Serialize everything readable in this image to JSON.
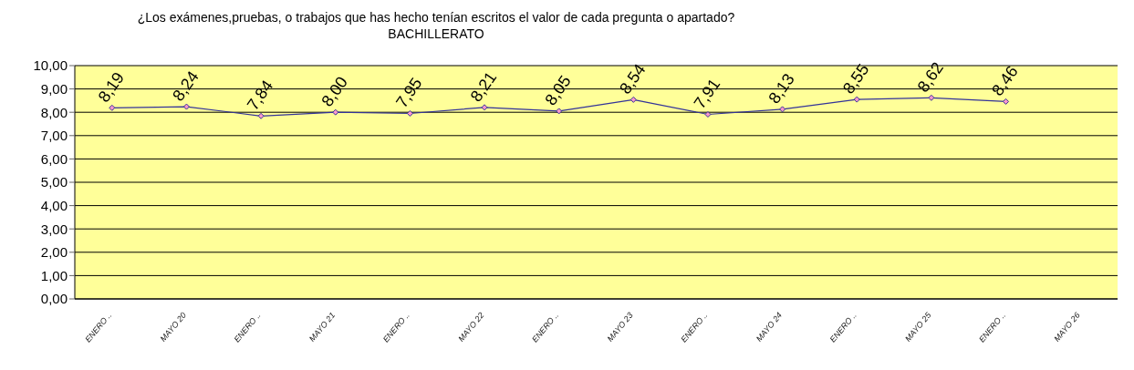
{
  "chart_data": {
    "type": "line",
    "title": "¿Los exámenes,pruebas, o trabajos que has hecho tenían escritos el valor de cada pregunta o apartado?",
    "subtitle": "BACHILLERATO",
    "categories": [
      "ENERO ..",
      "MAYO 20",
      "ENERO ..",
      "MAYO 21",
      "ENERO ..",
      "MAYO 22",
      "ENERO ..",
      "MAYO 23",
      "ENERO ..",
      "MAYO 24",
      "ENERO ..",
      "MAYO 25",
      "ENERO ..",
      "MAYO 26"
    ],
    "series": [
      {
        "color": "#333399",
        "values": [
          8.19,
          8.24,
          7.84,
          8.0,
          7.95,
          8.21,
          8.05,
          8.54,
          7.91,
          8.13,
          8.55,
          8.62,
          8.46,
          null
        ],
        "value_labels": [
          "8,19",
          "8,24",
          "7,84",
          "8,00",
          "7,95",
          "8,21",
          "8,05",
          "8,54",
          "7,91",
          "8,13",
          "8,55",
          "8,62",
          "8,46",
          null
        ]
      }
    ],
    "ylim": [
      0,
      10
    ],
    "yticks": [
      {
        "value": 0,
        "label": "0,00"
      },
      {
        "value": 1,
        "label": "1,00"
      },
      {
        "value": 2,
        "label": "2,00"
      },
      {
        "value": 3,
        "label": "3,00"
      },
      {
        "value": 4,
        "label": "4,00"
      },
      {
        "value": 5,
        "label": "5,00"
      },
      {
        "value": 6,
        "label": "6,00"
      },
      {
        "value": 7,
        "label": "7,00"
      },
      {
        "value": 8,
        "label": "8,00"
      },
      {
        "value": 9,
        "label": "9,00"
      },
      {
        "value": 10,
        "label": "10,00"
      }
    ],
    "grid": "y",
    "legend": false,
    "marker": "diamond",
    "line_style": "solid"
  }
}
